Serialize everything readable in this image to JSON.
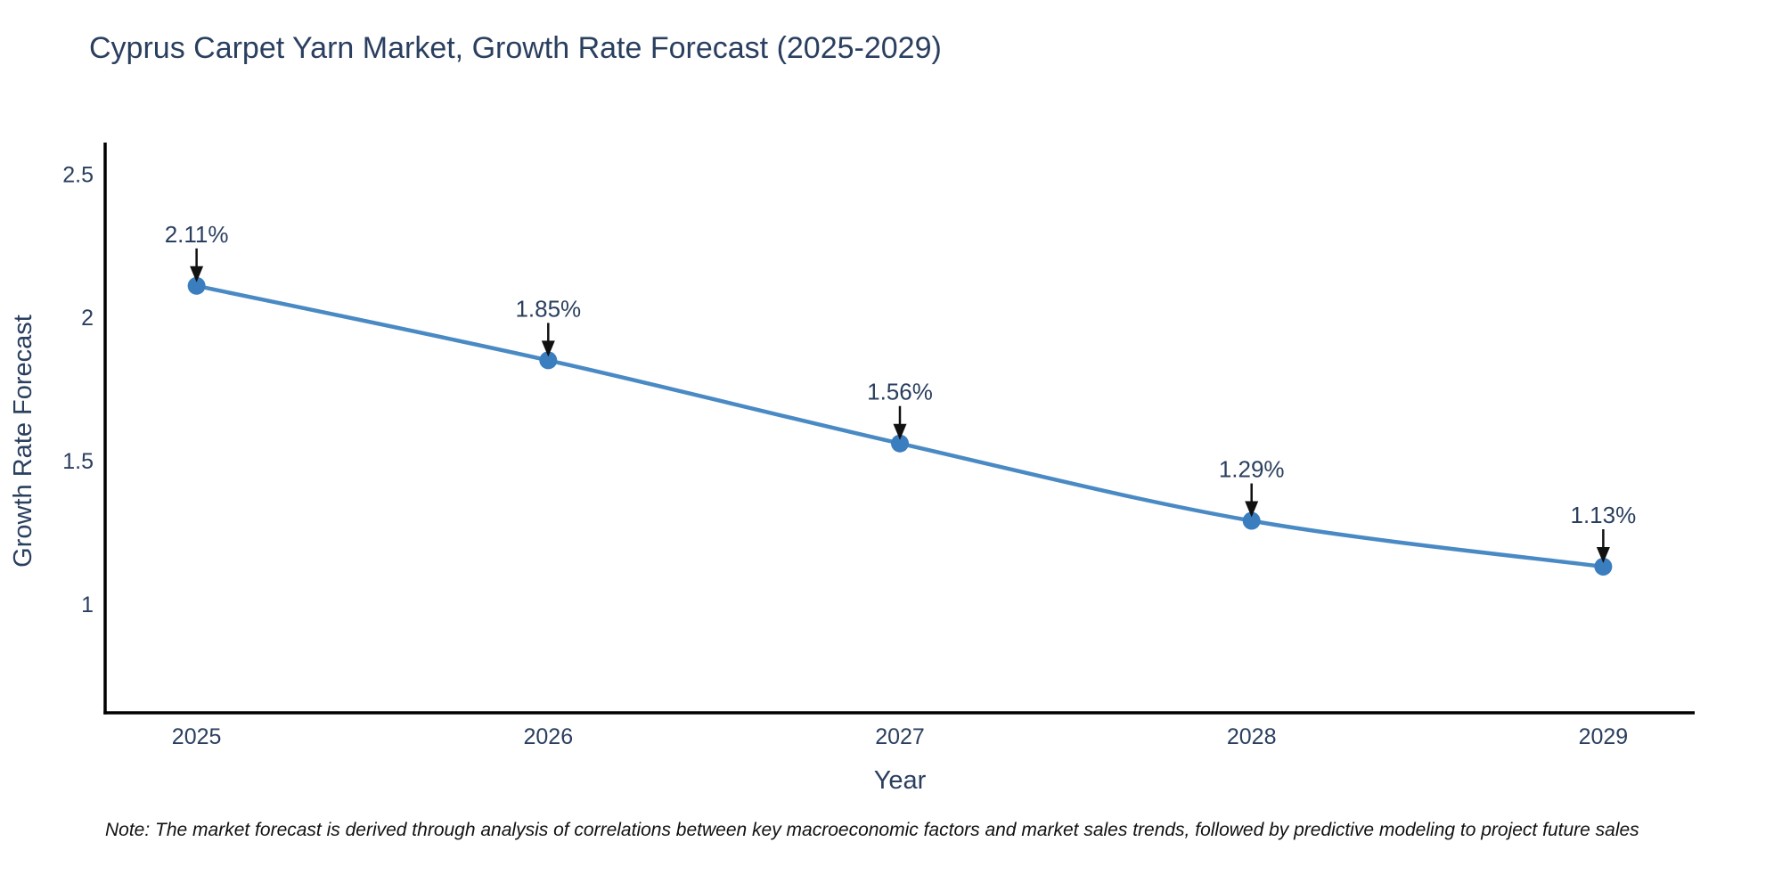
{
  "title": "Cyprus Carpet Yarn Market, Growth Rate Forecast (2025-2029)",
  "note": "Note: The market forecast is derived through analysis of correlations between key macroeconomic factors and market sales trends, followed by predictive modeling to project future sales",
  "colors": {
    "title_text": "#2a3f5f",
    "tick_text": "#2a3f5f",
    "annotation_text": "#2a3f5f",
    "axis_line": "#000000",
    "series_line": "#4a8ac4",
    "marker_fill": "#3a7ebf",
    "arrow": "#111111",
    "background": "#ffffff"
  },
  "chart_data": {
    "type": "line",
    "title": "Cyprus Carpet Yarn Market, Growth Rate Forecast (2025-2029)",
    "xlabel": "Year",
    "ylabel": "Growth Rate Forecast",
    "categories": [
      2025,
      2026,
      2027,
      2028,
      2029
    ],
    "series": [
      {
        "name": "Growth Rate Forecast",
        "values": [
          2.11,
          1.85,
          1.56,
          1.29,
          1.13
        ],
        "point_labels": [
          "2.11%",
          "1.85%",
          "1.56%",
          "1.29%",
          "1.13%"
        ]
      }
    ],
    "yticks": [
      1,
      1.5,
      2,
      2.5
    ],
    "ylim": [
      0.62,
      2.61
    ],
    "xlim": [
      2024.74,
      2029.26
    ],
    "grid": false,
    "legend": "none",
    "line_shape": "spline",
    "annotations": "value labels with downward arrows above each point"
  }
}
